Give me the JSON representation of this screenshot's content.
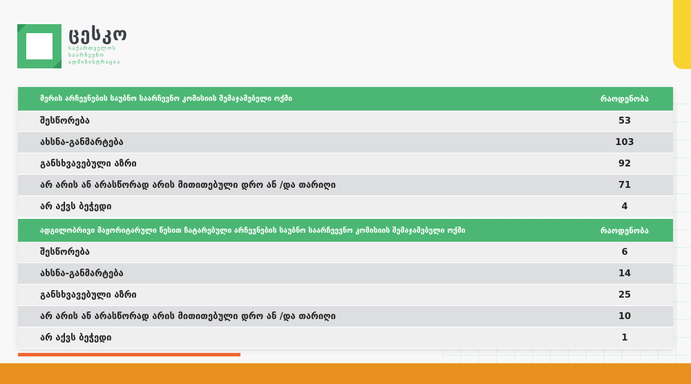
{
  "brand": {
    "name": "ცესკო",
    "subtitle": "საქართველოს საარჩევნო ადმინისტრაცია",
    "colors": {
      "green": "#4cb774",
      "orange": "#e8911f",
      "yellow": "#f6d32f",
      "red": "#f26430"
    }
  },
  "sections": [
    {
      "title": "მერის არჩევნების საუბნო საარჩევნო კომისიის შემაჯამებელი ოქმი",
      "count_header": "რაოდენობა",
      "rows": [
        {
          "label": "შესწორება",
          "value": "53"
        },
        {
          "label": "ახსნა-განმარტება",
          "value": "103"
        },
        {
          "label": "განსხვავებული აზრი",
          "value": "92"
        },
        {
          "label": "არ არის ან არასწორად არის მითითებული დრო ან /და თარიღი",
          "value": "71"
        },
        {
          "label": "არ აქვს ბეჭედი",
          "value": "4"
        }
      ]
    },
    {
      "title": "ადგილობრივი მაჟორიტარული წესით ჩატარებული არჩევნების საუბნო საარჩეევნო კომისიის შემაჯამებელი ოქმი",
      "count_header": "რაოდენობა",
      "rows": [
        {
          "label": "შესწორება",
          "value": "6"
        },
        {
          "label": "ახსნა-განმარტება",
          "value": "14"
        },
        {
          "label": "განსხვავებული აზრი",
          "value": "25"
        },
        {
          "label": "არ არის ან არასწორად არის მითითებული დრო ან /და თარიღი",
          "value": "10"
        },
        {
          "label": "არ აქვს ბეჭედი",
          "value": "1"
        }
      ]
    }
  ]
}
